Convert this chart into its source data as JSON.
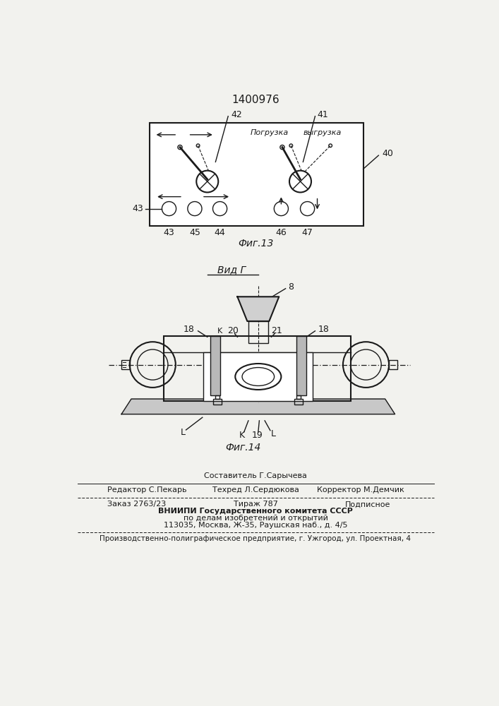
{
  "patent_number": "1400976",
  "bg_color": "#f2f2ee",
  "footer": {
    "line1_center": "Составитель Г.Сарычева",
    "line2_left": "Редактор С.Пекарь",
    "line2_center": "Техред Л.Сердюкова",
    "line2_right": "Корректор М.Демчик",
    "line3_left": "Заказ 2763/23",
    "line3_center": "Тираж 787",
    "line3_right": "Подписное",
    "line4": "ВНИИПИ Государственного комитета СССР",
    "line5": "по делам изобретений и открытий",
    "line6": "113035, Москва, Ж-35, Раушская наб., д. 4/5",
    "line7": "Производственно-полиграфическое предприятие, г. Ужгород, ул. Проектная, 4"
  }
}
